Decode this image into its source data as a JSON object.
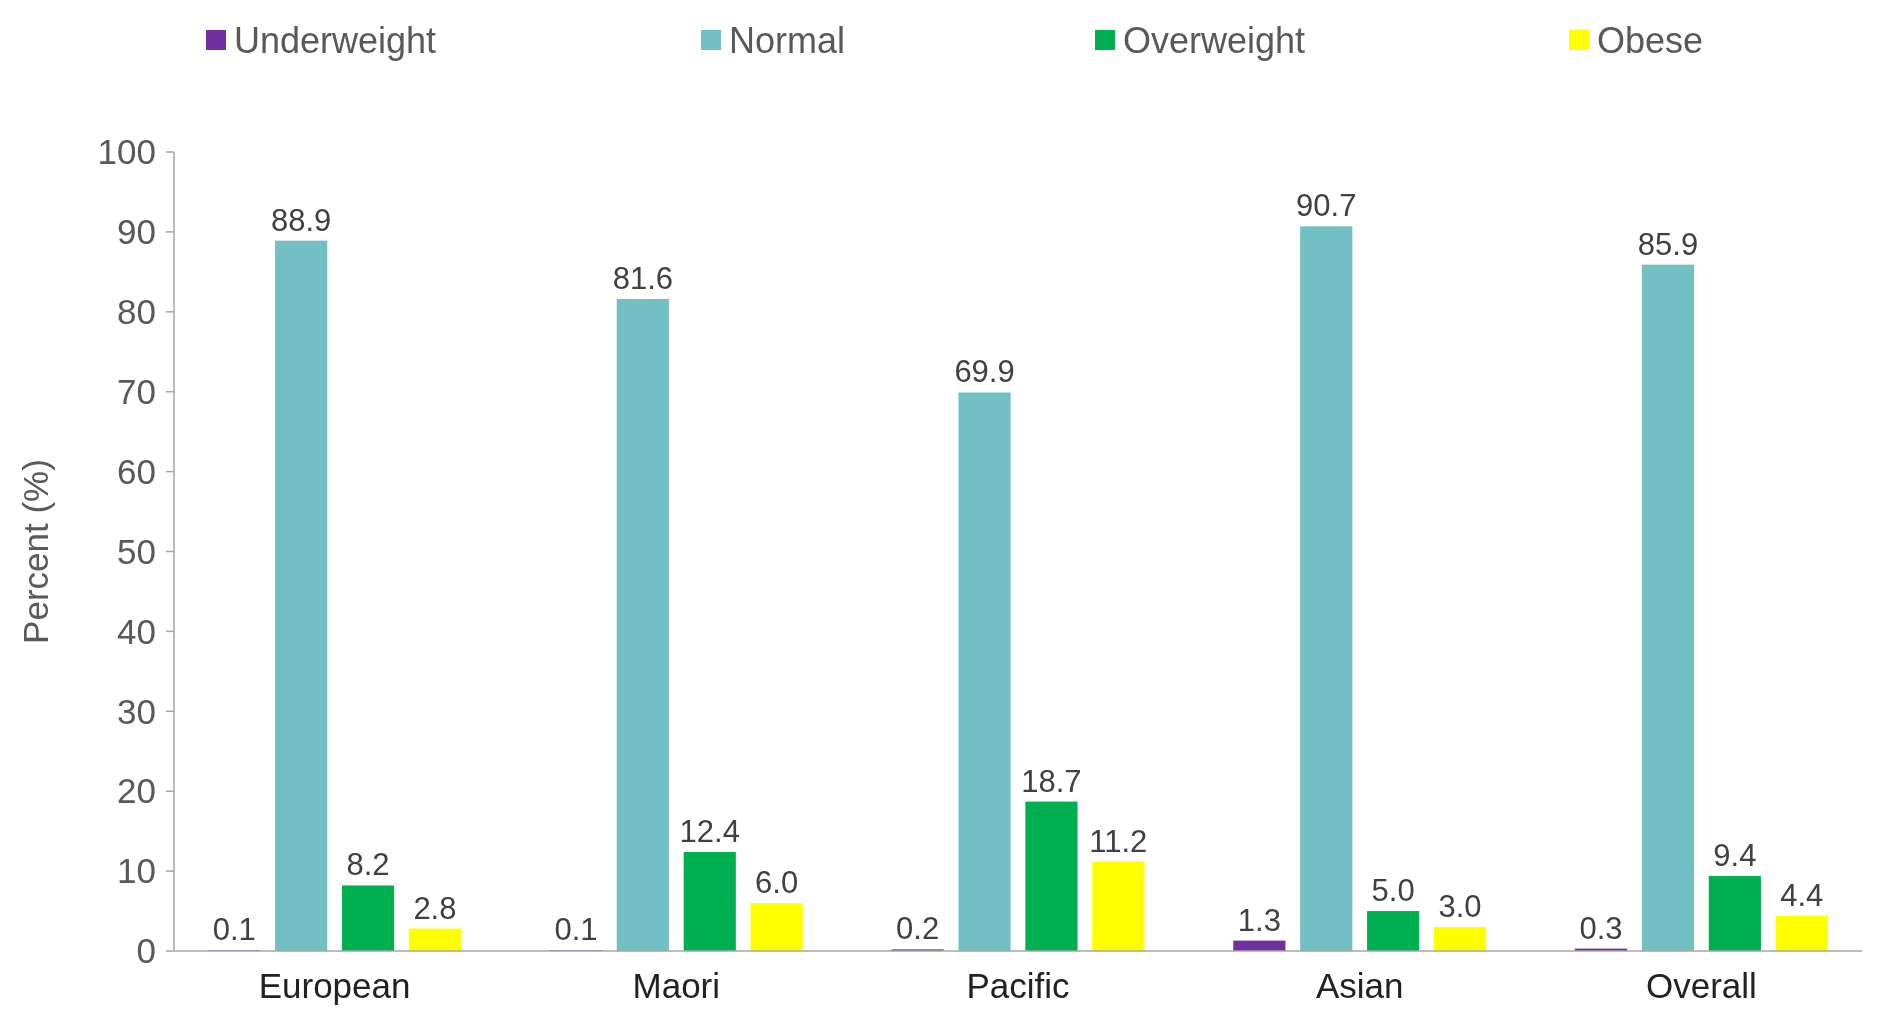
{
  "chart_data": {
    "type": "bar",
    "ylabel": "Percent (%)",
    "categories": [
      "European",
      "Maori",
      "Pacific",
      "Asian",
      "Overall"
    ],
    "series": [
      {
        "name": "Underweight",
        "color": "#7030a0",
        "values": [
          0.1,
          0.1,
          0.2,
          1.3,
          0.3
        ],
        "value_labels": [
          "0.1",
          "0.1",
          "0.2",
          "1.3",
          "0.3"
        ]
      },
      {
        "name": "Normal",
        "color": "#72bfc4",
        "values": [
          88.9,
          81.6,
          69.9,
          90.7,
          85.9
        ],
        "value_labels": [
          "88.9",
          "81.6",
          "69.9",
          "90.7",
          "85.9"
        ]
      },
      {
        "name": "Overweight",
        "color": "#00b050",
        "values": [
          8.2,
          12.4,
          18.7,
          5,
          9.4
        ],
        "value_labels": [
          "8.2",
          "12.4",
          "18.7",
          "5.0",
          "9.4"
        ]
      },
      {
        "name": "Obese",
        "color": "#ffff00",
        "values": [
          2.8,
          6,
          11.2,
          3,
          4.4
        ],
        "value_labels": [
          "2.8",
          "6.0",
          "11.2",
          "3.0",
          "4.4"
        ]
      }
    ],
    "ylim": [
      0,
      100
    ],
    "yticks": [
      0,
      10,
      20,
      30,
      40,
      50,
      60,
      70,
      80,
      90,
      100
    ],
    "legend": "top",
    "grid": false
  }
}
